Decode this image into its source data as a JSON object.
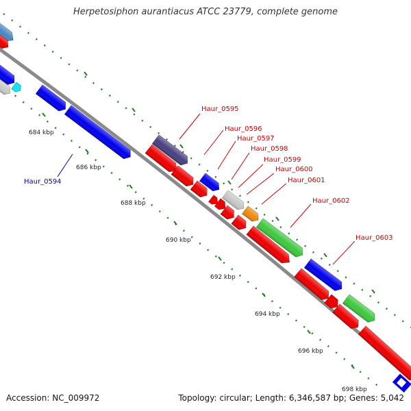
{
  "title": "Herpetosiphon aurantiacus ATCC 23779, complete genome",
  "footer": {
    "accession": "Accession: NC_009972",
    "topology": "Topology: circular; Length: 6,346,587 bp; Genes: 5,042"
  },
  "colors": {
    "backbone": "#8a8a8a",
    "tick": "#1e7a1e",
    "forward_gene": "#0000ee",
    "reverse_gene": "#ee0000",
    "forward_label": "#0000aa",
    "reverse_label": "#cc0000",
    "steelblue": "#4a86c0",
    "grey": "#c8c8c8",
    "cyan": "#18e0f0",
    "purple": "#4a4080",
    "orange": "#f08a10",
    "green": "#40c840"
  },
  "ruler": [
    {
      "label": "684 kbp"
    },
    {
      "label": "686 kbp"
    },
    {
      "label": "688 kbp"
    },
    {
      "label": "690 kbp"
    },
    {
      "label": "692 kbp"
    },
    {
      "label": "694 kbp"
    },
    {
      "label": "696 kbp"
    },
    {
      "label": "698 kbp"
    }
  ],
  "gene_labels": [
    {
      "text": "Haur_0594",
      "strand": "forward"
    },
    {
      "text": "Haur_0595",
      "strand": "reverse"
    },
    {
      "text": "Haur_0596",
      "strand": "reverse"
    },
    {
      "text": "Haur_0597",
      "strand": "reverse"
    },
    {
      "text": "Haur_0598",
      "strand": "reverse"
    },
    {
      "text": "Haur_0599",
      "strand": "reverse"
    },
    {
      "text": "Haur_0600",
      "strand": "reverse"
    },
    {
      "text": "Haur_0601",
      "strand": "reverse"
    },
    {
      "text": "Haur_0602",
      "strand": "reverse"
    },
    {
      "text": "Haur_0603",
      "strand": "reverse"
    }
  ]
}
